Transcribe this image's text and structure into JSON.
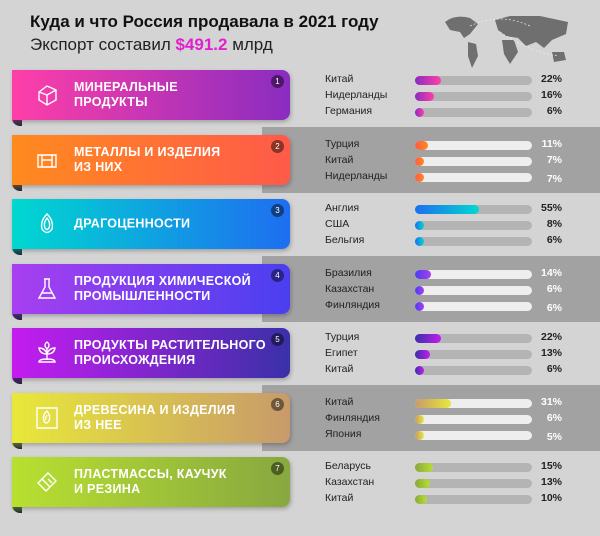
{
  "header": {
    "title": "Куда и что Россия продавала в 2021 году",
    "subtitle_prefix": "Экспорт составил ",
    "subtitle_amount": "$491.2",
    "subtitle_suffix": " млрд"
  },
  "chart_data": {
    "type": "bar",
    "title": "Куда и что Россия продавала в 2021 году",
    "unit": "%",
    "groups": [
      {
        "num": "1",
        "label": "МИНЕРАЛЬНЫЕ\nПРОДУКТЫ",
        "icon": "gem-rock-icon",
        "colors": [
          "#ff3fa8",
          "#8a2cc0"
        ],
        "countries": [
          {
            "name": "Китай",
            "value": 22
          },
          {
            "name": "Нидерланды",
            "value": 16
          },
          {
            "name": "Германия",
            "value": 6
          }
        ]
      },
      {
        "num": "2",
        "label": "МЕТАЛЛЫ И ИЗДЕЛИЯ\nИЗ НИХ",
        "icon": "metal-ingot-icon",
        "colors": [
          "#ff8a1e",
          "#ff5a4a"
        ],
        "countries": [
          {
            "name": "Турция",
            "value": 11
          },
          {
            "name": "Китай",
            "value": 7
          },
          {
            "name": "Нидерланды",
            "value": 7
          }
        ]
      },
      {
        "num": "3",
        "label": "ДРАГОЦЕННОСТИ",
        "icon": "diamond-icon",
        "colors": [
          "#00d8d0",
          "#1e6ef0"
        ],
        "countries": [
          {
            "name": "Англия",
            "value": 55
          },
          {
            "name": "США",
            "value": 8
          },
          {
            "name": "Бельгия",
            "value": 6
          }
        ]
      },
      {
        "num": "4",
        "label": "ПРОДУКЦИЯ ХИМИЧЕСКОЙ\nПРОМЫШЛЕННОСТИ",
        "icon": "flask-icon",
        "colors": [
          "#a83ff0",
          "#4a3ff0"
        ],
        "countries": [
          {
            "name": "Бразилия",
            "value": 14
          },
          {
            "name": "Казахстан",
            "value": 6
          },
          {
            "name": "Финляндия",
            "value": 6
          }
        ]
      },
      {
        "num": "5",
        "label": "ПРОДУКТЫ РАСТИТЕЛЬНОГО\nПРОИСХОЖДЕНИЯ",
        "icon": "plant-icon",
        "colors": [
          "#c41cf0",
          "#3a30a8"
        ],
        "countries": [
          {
            "name": "Турция",
            "value": 22
          },
          {
            "name": "Египет",
            "value": 13
          },
          {
            "name": "Китай",
            "value": 6
          }
        ]
      },
      {
        "num": "6",
        "label": "ДРЕВЕСИНА И ИЗДЕЛИЯ\nИЗ НЕЕ",
        "icon": "wood-icon",
        "colors": [
          "#e8e83a",
          "#c89a6a"
        ],
        "countries": [
          {
            "name": "Китай",
            "value": 31
          },
          {
            "name": "Финляндия",
            "value": 6
          },
          {
            "name": "Япония",
            "value": 5
          }
        ]
      },
      {
        "num": "7",
        "label": "ПЛАСТМАССЫ, КАУЧУК\nИ РЕЗИНА",
        "icon": "eraser-icon",
        "colors": [
          "#b8e030",
          "#88a840"
        ],
        "countries": [
          {
            "name": "Беларусь",
            "value": 15
          },
          {
            "name": "Казахстан",
            "value": 13
          },
          {
            "name": "Китай",
            "value": 10
          }
        ]
      }
    ]
  }
}
